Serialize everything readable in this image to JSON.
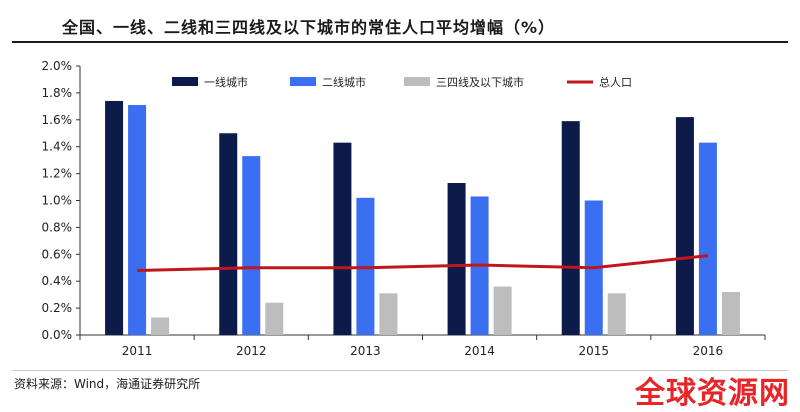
{
  "header": {
    "title": "全国、一线、二线和三四线及以下城市的常住人口平均增幅（%）"
  },
  "footer": {
    "source": "资料来源：Wind，海通证券研究所",
    "watermark": "全球资源网"
  },
  "colors": {
    "tier1": "#0d1b4b",
    "tier2": "#3b6ff2",
    "tier3": "#bdbdbd",
    "total": "#c0171d"
  },
  "chart_data": {
    "type": "bar",
    "title": "全国、一线、二线和三四线及以下城市的常住人口平均增幅（%）",
    "categories": [
      "2011",
      "2012",
      "2013",
      "2014",
      "2015",
      "2016"
    ],
    "series": [
      {
        "name": "一线城市",
        "type": "bar",
        "values": [
          1.74,
          1.5,
          1.43,
          1.13,
          1.59,
          1.62
        ]
      },
      {
        "name": "二线城市",
        "type": "bar",
        "values": [
          1.71,
          1.33,
          1.02,
          1.03,
          1.0,
          1.43
        ]
      },
      {
        "name": "三四线及以下城市",
        "type": "bar",
        "values": [
          0.13,
          0.24,
          0.31,
          0.36,
          0.31,
          0.32
        ]
      },
      {
        "name": "总人口",
        "type": "line",
        "values": [
          0.48,
          0.5,
          0.5,
          0.52,
          0.5,
          0.59
        ]
      }
    ],
    "ylim": [
      0,
      2.0
    ],
    "yticks": [
      "0.0%",
      "0.2%",
      "0.4%",
      "0.6%",
      "0.8%",
      "1.0%",
      "1.2%",
      "1.4%",
      "1.6%",
      "1.8%",
      "2.0%"
    ],
    "ytick_values": [
      0,
      0.2,
      0.4,
      0.6,
      0.8,
      1.0,
      1.2,
      1.4,
      1.6,
      1.8,
      2.0
    ],
    "xlabel": "",
    "ylabel": "",
    "grid": false,
    "legend": "top"
  }
}
